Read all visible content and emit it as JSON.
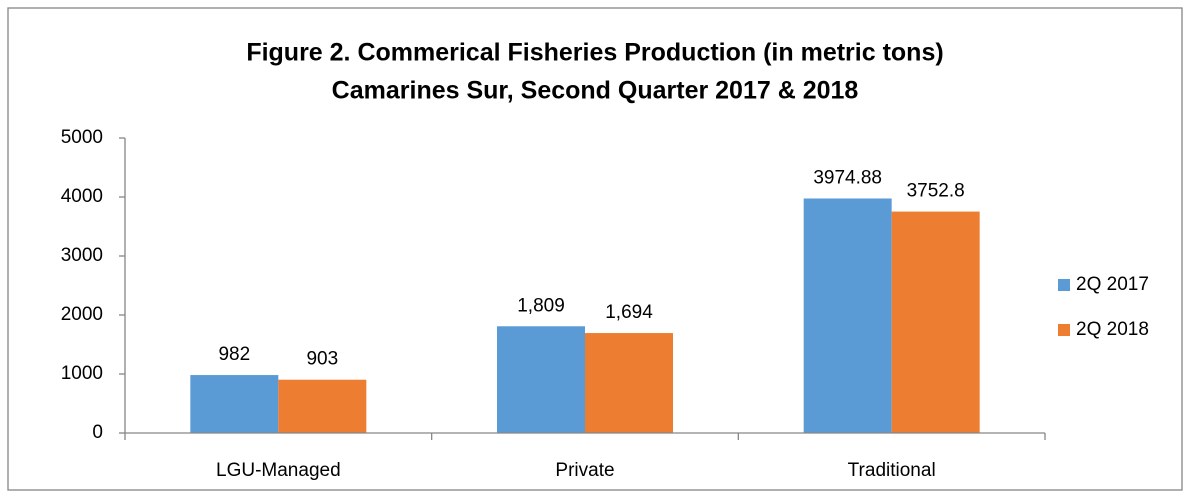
{
  "chart_data": {
    "type": "bar",
    "title": "Figure 2. Commerical Fisheries Production (in metric tons)",
    "subtitle": "Camarines Sur, Second Quarter 2017 & 2018",
    "categories": [
      "LGU-Managed",
      "Private",
      "Traditional"
    ],
    "series": [
      {
        "name": "2Q 2017",
        "color": "#5b9bd5",
        "values": [
          982,
          1809,
          3974.88
        ],
        "value_labels": [
          "982",
          "1,809",
          "3974.88"
        ]
      },
      {
        "name": "2Q 2018",
        "color": "#ed7d31",
        "values": [
          903,
          1694,
          3752.8
        ],
        "value_labels": [
          "903",
          "1,694",
          "3752.8"
        ]
      }
    ],
    "ylim": [
      0,
      5000
    ],
    "yticks": [
      0,
      1000,
      2000,
      3000,
      4000,
      5000
    ],
    "grid": false,
    "legend": "right"
  }
}
